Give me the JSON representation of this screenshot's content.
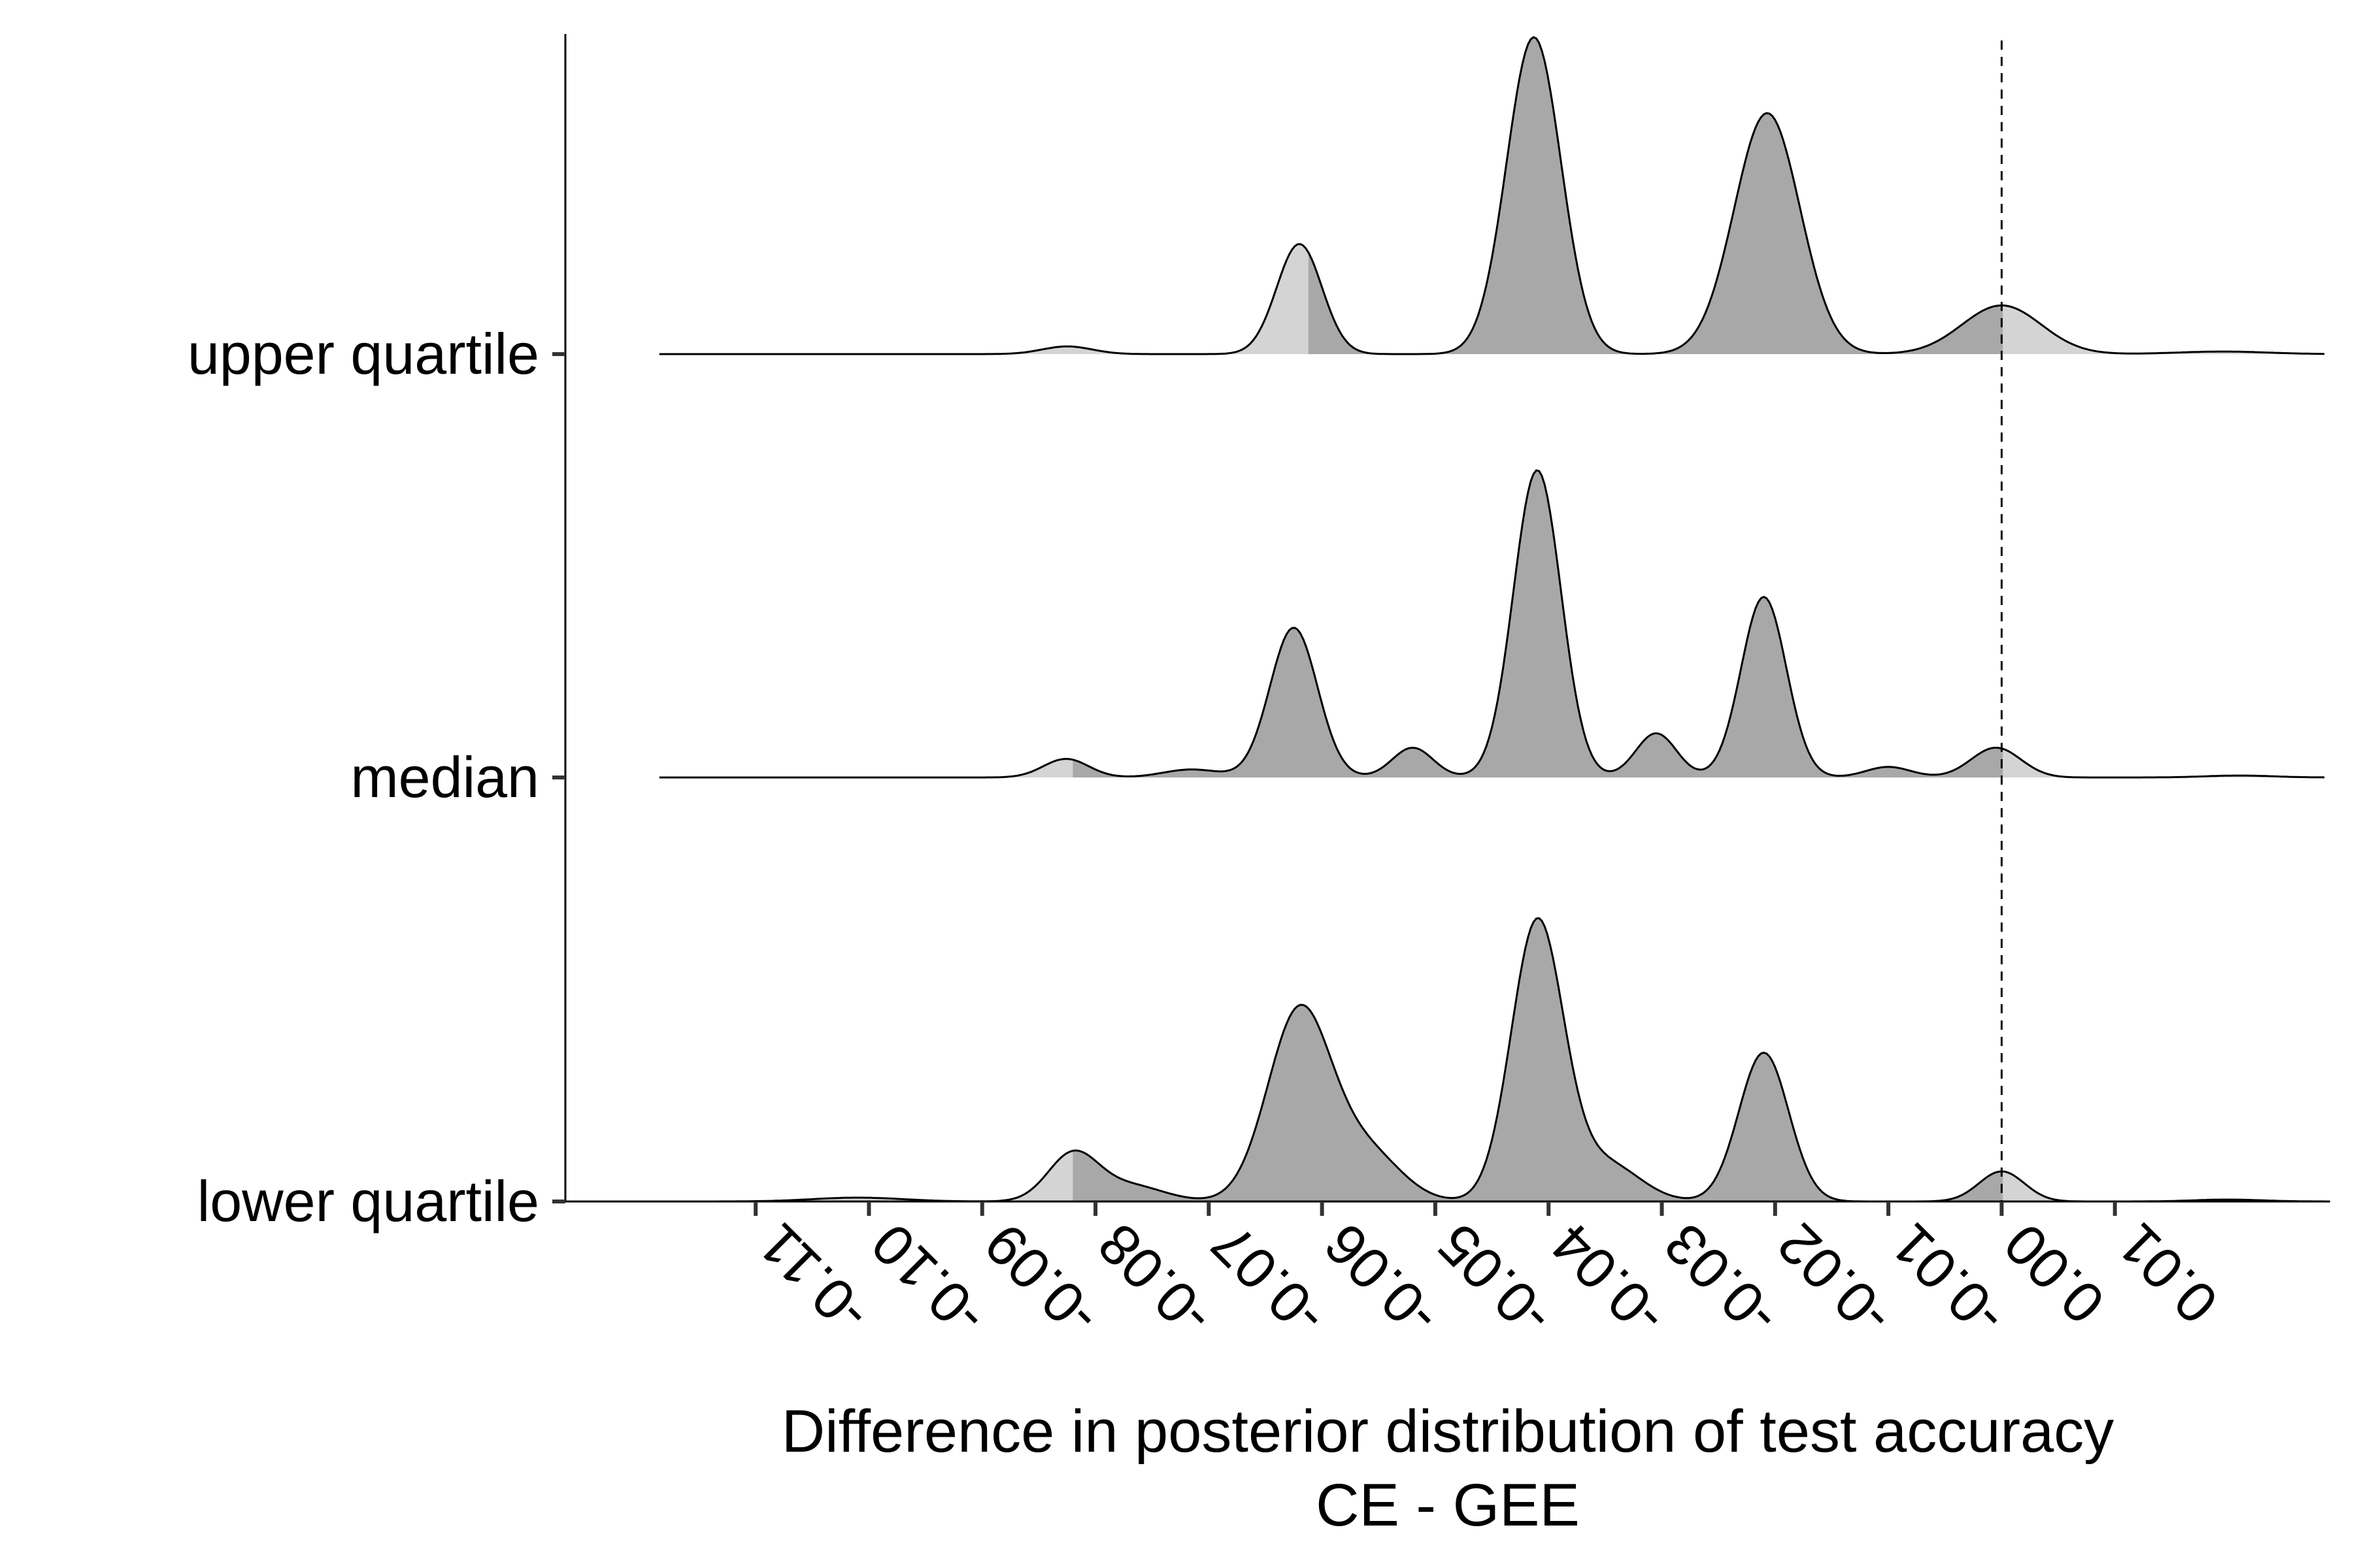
{
  "chart_data": {
    "type": "area",
    "subtype": "ridgeline-density",
    "xlabel": "Difference in posterior distribution of test accuracy",
    "xlabel_line2": "CE - GEE",
    "ylabel": "",
    "xlim": [
      -0.1268,
      0.029
    ],
    "x_ticks": [
      -0.11,
      -0.1,
      -0.09,
      -0.08,
      -0.07,
      -0.06,
      -0.05,
      -0.04,
      -0.03,
      -0.02,
      -0.01,
      0.0,
      0.01
    ],
    "x_tick_labels": [
      "-0.11",
      "-0.10",
      "-0.09",
      "-0.08",
      "-0.07",
      "-0.06",
      "-0.05",
      "-0.04",
      "-0.03",
      "-0.02",
      "-0.01",
      "0.00",
      "0.01"
    ],
    "reference_line_x": 0.0,
    "grid": false,
    "legend": "none",
    "colors": {
      "inner_fill": "#a8a8a8",
      "tail_fill": "#d4d4d4",
      "outline": "#000000",
      "reference_line": "#000000"
    },
    "density_x_range": [
      -0.1185,
      0.0285
    ],
    "series": [
      {
        "name": "upper quartile",
        "interval": [
          -0.0612,
          0.0001
        ],
        "peak_height": 1.0,
        "components": [
          {
            "mu": -0.0825,
            "sd": 0.0022,
            "h": 0.024
          },
          {
            "mu": -0.062,
            "sd": 0.002,
            "h": 0.344
          },
          {
            "mu": -0.0413,
            "sd": 0.0024,
            "h": 0.99
          },
          {
            "mu": -0.0207,
            "sd": 0.0029,
            "h": 0.753
          },
          {
            "mu": 0.0,
            "sd": 0.0035,
            "h": 0.152
          },
          {
            "mu": 0.0195,
            "sd": 0.004,
            "h": 0.008
          }
        ]
      },
      {
        "name": "median",
        "interval": [
          -0.082,
          0.0001
        ],
        "peak_height": 0.97,
        "components": [
          {
            "mu": -0.0826,
            "sd": 0.002,
            "h": 0.058
          },
          {
            "mu": -0.0715,
            "sd": 0.0025,
            "h": 0.025
          },
          {
            "mu": -0.0625,
            "sd": 0.0021,
            "h": 0.468
          },
          {
            "mu": -0.052,
            "sd": 0.0018,
            "h": 0.093
          },
          {
            "mu": -0.041,
            "sd": 0.0021,
            "h": 0.96
          },
          {
            "mu": -0.0305,
            "sd": 0.0018,
            "h": 0.138
          },
          {
            "mu": -0.021,
            "sd": 0.002,
            "h": 0.564
          },
          {
            "mu": -0.01,
            "sd": 0.002,
            "h": 0.033
          },
          {
            "mu": -0.0005,
            "sd": 0.0022,
            "h": 0.093
          },
          {
            "mu": 0.021,
            "sd": 0.003,
            "h": 0.006
          }
        ]
      },
      {
        "name": "lower quartile",
        "interval": [
          -0.082,
          0.0001
        ],
        "peak_height": 0.94,
        "components": [
          {
            "mu": -0.101,
            "sd": 0.004,
            "h": 0.012
          },
          {
            "mu": -0.082,
            "sd": 0.0022,
            "h": 0.146
          },
          {
            "mu": -0.077,
            "sd": 0.003,
            "h": 0.05
          },
          {
            "mu": -0.062,
            "sd": 0.0028,
            "h": 0.593
          },
          {
            "mu": -0.056,
            "sd": 0.003,
            "h": 0.15
          },
          {
            "mu": -0.041,
            "sd": 0.0023,
            "h": 0.869
          },
          {
            "mu": -0.035,
            "sd": 0.003,
            "h": 0.12
          },
          {
            "mu": -0.021,
            "sd": 0.0022,
            "h": 0.465
          },
          {
            "mu": 0.0,
            "sd": 0.002,
            "h": 0.094
          },
          {
            "mu": 0.02,
            "sd": 0.003,
            "h": 0.006
          }
        ]
      }
    ]
  }
}
